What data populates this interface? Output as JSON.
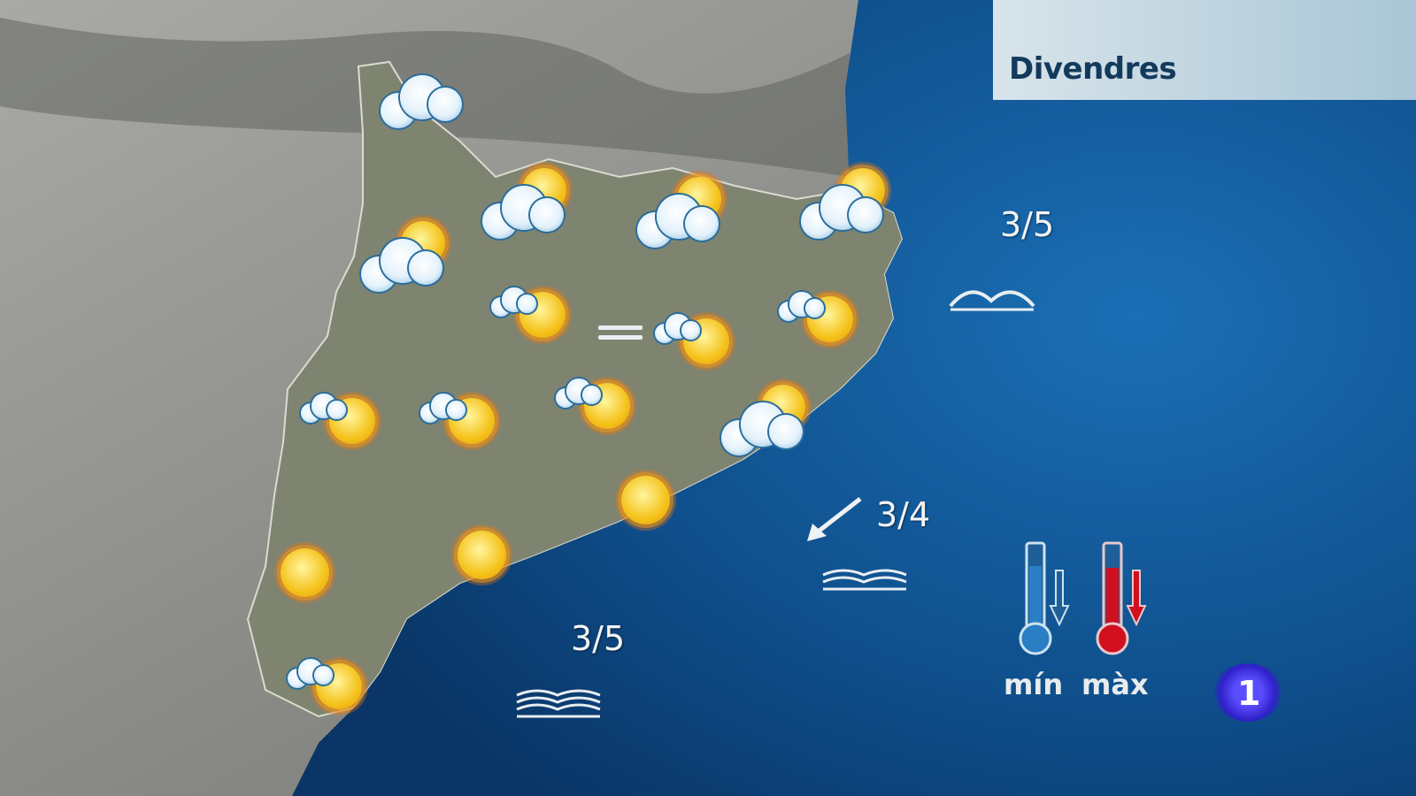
{
  "header": {
    "day": "Divendres"
  },
  "icons": [
    "cloud",
    "sun-cloud",
    "sun-cloud",
    "sun-cloud",
    "sun-cloud",
    "sun-haze",
    "sun-haze",
    "sun-haze",
    "sun-haze",
    "sun-haze",
    "sun-haze",
    "sun-cloud",
    "sun",
    "sun",
    "sun",
    "sun-haze"
  ],
  "fog_symbol": "fog",
  "sea": [
    {
      "state": "3/5",
      "icon": "waves-icon"
    },
    {
      "state": "3/4",
      "icon": "waves-icon",
      "wind": "southwest-arrow"
    },
    {
      "state": "3/5",
      "icon": "waves-icon"
    }
  ],
  "legend": {
    "min": "mín",
    "max": "màx"
  },
  "channel_logo": "1",
  "colors": {
    "sea": "#0f5a9c",
    "land": "#7e8470",
    "title_text": "#123a5c",
    "min": "#2a7fc4",
    "max": "#d0101e"
  }
}
